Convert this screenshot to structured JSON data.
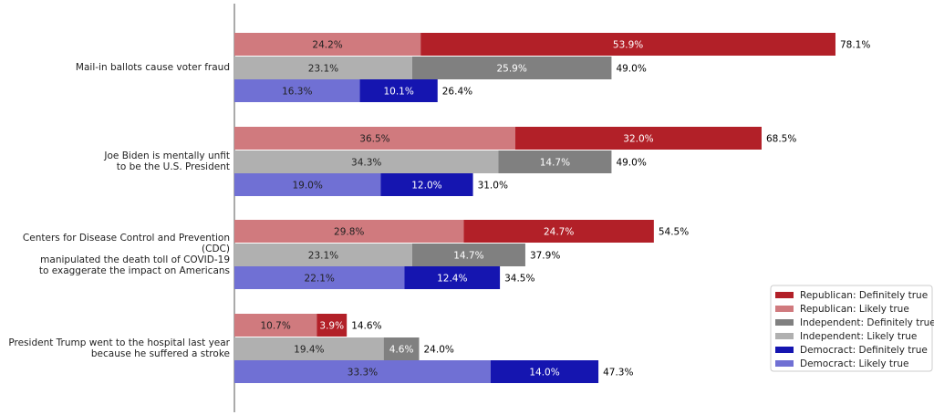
{
  "chart_data": {
    "type": "grouped-stacked-barh",
    "categories": [
      "Mail-in ballots cause voter fraud",
      "Joe Biden is mentally unfit\nto be the U.S. President",
      "Centers for Disease Control and Prevention (CDC)\nmanipulated the death toll of COVID-19\nto exaggerate the impact on Americans",
      "President Trump went to the hospital last year\nbecause he suffered a stroke"
    ],
    "xlim": [
      0,
      80
    ],
    "legend": "lower right",
    "groups": [
      {
        "series": [
          {
            "name": "Republican: Likely true",
            "color": "#d07a7e",
            "values": [
              24.2,
              36.5,
              29.8,
              10.7
            ],
            "value_labels": [
              "24.2%",
              "36.5%",
              "29.8%",
              "10.7%"
            ]
          },
          {
            "name": "Republican: Definitely true",
            "color": "#b22028",
            "values": [
              53.9,
              32.0,
              24.7,
              3.9
            ],
            "value_labels": [
              "53.9%",
              "32.0%",
              "24.7%",
              "3.9%"
            ]
          }
        ],
        "totals": {
          "values": [
            78.1,
            68.5,
            54.5,
            14.6
          ],
          "value_labels": [
            "78.1%",
            "68.5%",
            "54.5%",
            "14.6%"
          ]
        }
      },
      {
        "series": [
          {
            "name": "Independent: Likely true",
            "color": "#b0b0b0",
            "values": [
              23.1,
              34.3,
              23.1,
              19.4
            ],
            "value_labels": [
              "23.1%",
              "34.3%",
              "23.1%",
              "19.4%"
            ]
          },
          {
            "name": "Independent: Definitely true",
            "color": "#808080",
            "values": [
              25.9,
              14.7,
              14.7,
              4.6
            ],
            "value_labels": [
              "25.9%",
              "14.7%",
              "14.7%",
              "4.6%"
            ]
          }
        ],
        "totals": {
          "values": [
            49.0,
            49.0,
            37.9,
            24.0
          ],
          "value_labels": [
            "49.0%",
            "49.0%",
            "37.9%",
            "24.0%"
          ]
        }
      },
      {
        "series": [
          {
            "name": "Democract: Likely true",
            "color": "#7070d4",
            "values": [
              16.3,
              19.0,
              22.1,
              33.3
            ],
            "value_labels": [
              "16.3%",
              "19.0%",
              "22.1%",
              "33.3%"
            ]
          },
          {
            "name": "Democract: Definitely true",
            "color": "#1515b0",
            "values": [
              10.1,
              12.0,
              12.4,
              14.0
            ],
            "value_labels": [
              "10.1%",
              "12.0%",
              "12.4%",
              "14.0%"
            ]
          }
        ],
        "totals": {
          "values": [
            26.4,
            31.0,
            34.5,
            47.3
          ],
          "value_labels": [
            "26.4%",
            "31.0%",
            "34.5%",
            "47.3%"
          ]
        }
      }
    ]
  }
}
